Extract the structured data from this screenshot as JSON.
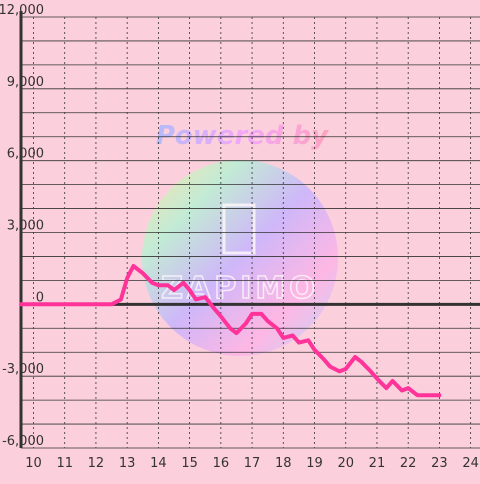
{
  "chart_data": {
    "type": "line",
    "title": "",
    "xlabel": "",
    "ylabel": "",
    "xlim": [
      9.6,
      24.3
    ],
    "ylim": [
      -6000,
      12000
    ],
    "x_ticks": [
      10,
      11,
      12,
      13,
      14,
      15,
      16,
      17,
      18,
      19,
      20,
      21,
      22,
      23,
      24
    ],
    "x_tick_labels": [
      "10",
      "11",
      "12",
      "13",
      "14",
      "15",
      "16",
      "17",
      "18",
      "19",
      "20",
      "21",
      "22",
      "23",
      "24"
    ],
    "y_ticks": [
      -6000,
      -3000,
      0,
      3000,
      6000,
      9000,
      12000
    ],
    "y_tick_labels": [
      "-6,000",
      "-3,000",
      "0",
      "3,000",
      "6,000",
      "9,000",
      "12,000"
    ],
    "grid": true,
    "baseline": 0,
    "colors": {
      "background": "#fbd0dc",
      "line": "#ff3399",
      "grid": "#333333",
      "axis": "#333333"
    },
    "watermark": {
      "text": "Powered by",
      "brand": "ZAPIMO",
      "shape": "rainbow-circle"
    },
    "series": [
      {
        "x": [
          9.6,
          10,
          11,
          12,
          12.5,
          12.8,
          13.0,
          13.2,
          13.5,
          13.8,
          14.0,
          14.3,
          14.5,
          14.8,
          15.0,
          15.2,
          15.5,
          15.8,
          16.0,
          16.3,
          16.5,
          16.8,
          17.0,
          17.3,
          17.5,
          17.8,
          18.0,
          18.3,
          18.5,
          18.8,
          19.0,
          19.3,
          19.5,
          19.8,
          20.0,
          20.3,
          20.5,
          20.8,
          21.0,
          21.3,
          21.5,
          21.8,
          22.0,
          22.3,
          22.5,
          23.0
        ],
        "values": [
          0,
          0,
          0,
          0,
          0,
          200,
          1100,
          1600,
          1300,
          900,
          800,
          800,
          600,
          900,
          600,
          200,
          300,
          -200,
          -500,
          -1000,
          -1200,
          -800,
          -400,
          -400,
          -700,
          -1000,
          -1400,
          -1300,
          -1600,
          -1500,
          -1900,
          -2300,
          -2600,
          -2800,
          -2700,
          -2200,
          -2400,
          -2800,
          -3100,
          -3500,
          -3200,
          -3600,
          -3500,
          -3800,
          -3800,
          -3800
        ]
      }
    ]
  }
}
